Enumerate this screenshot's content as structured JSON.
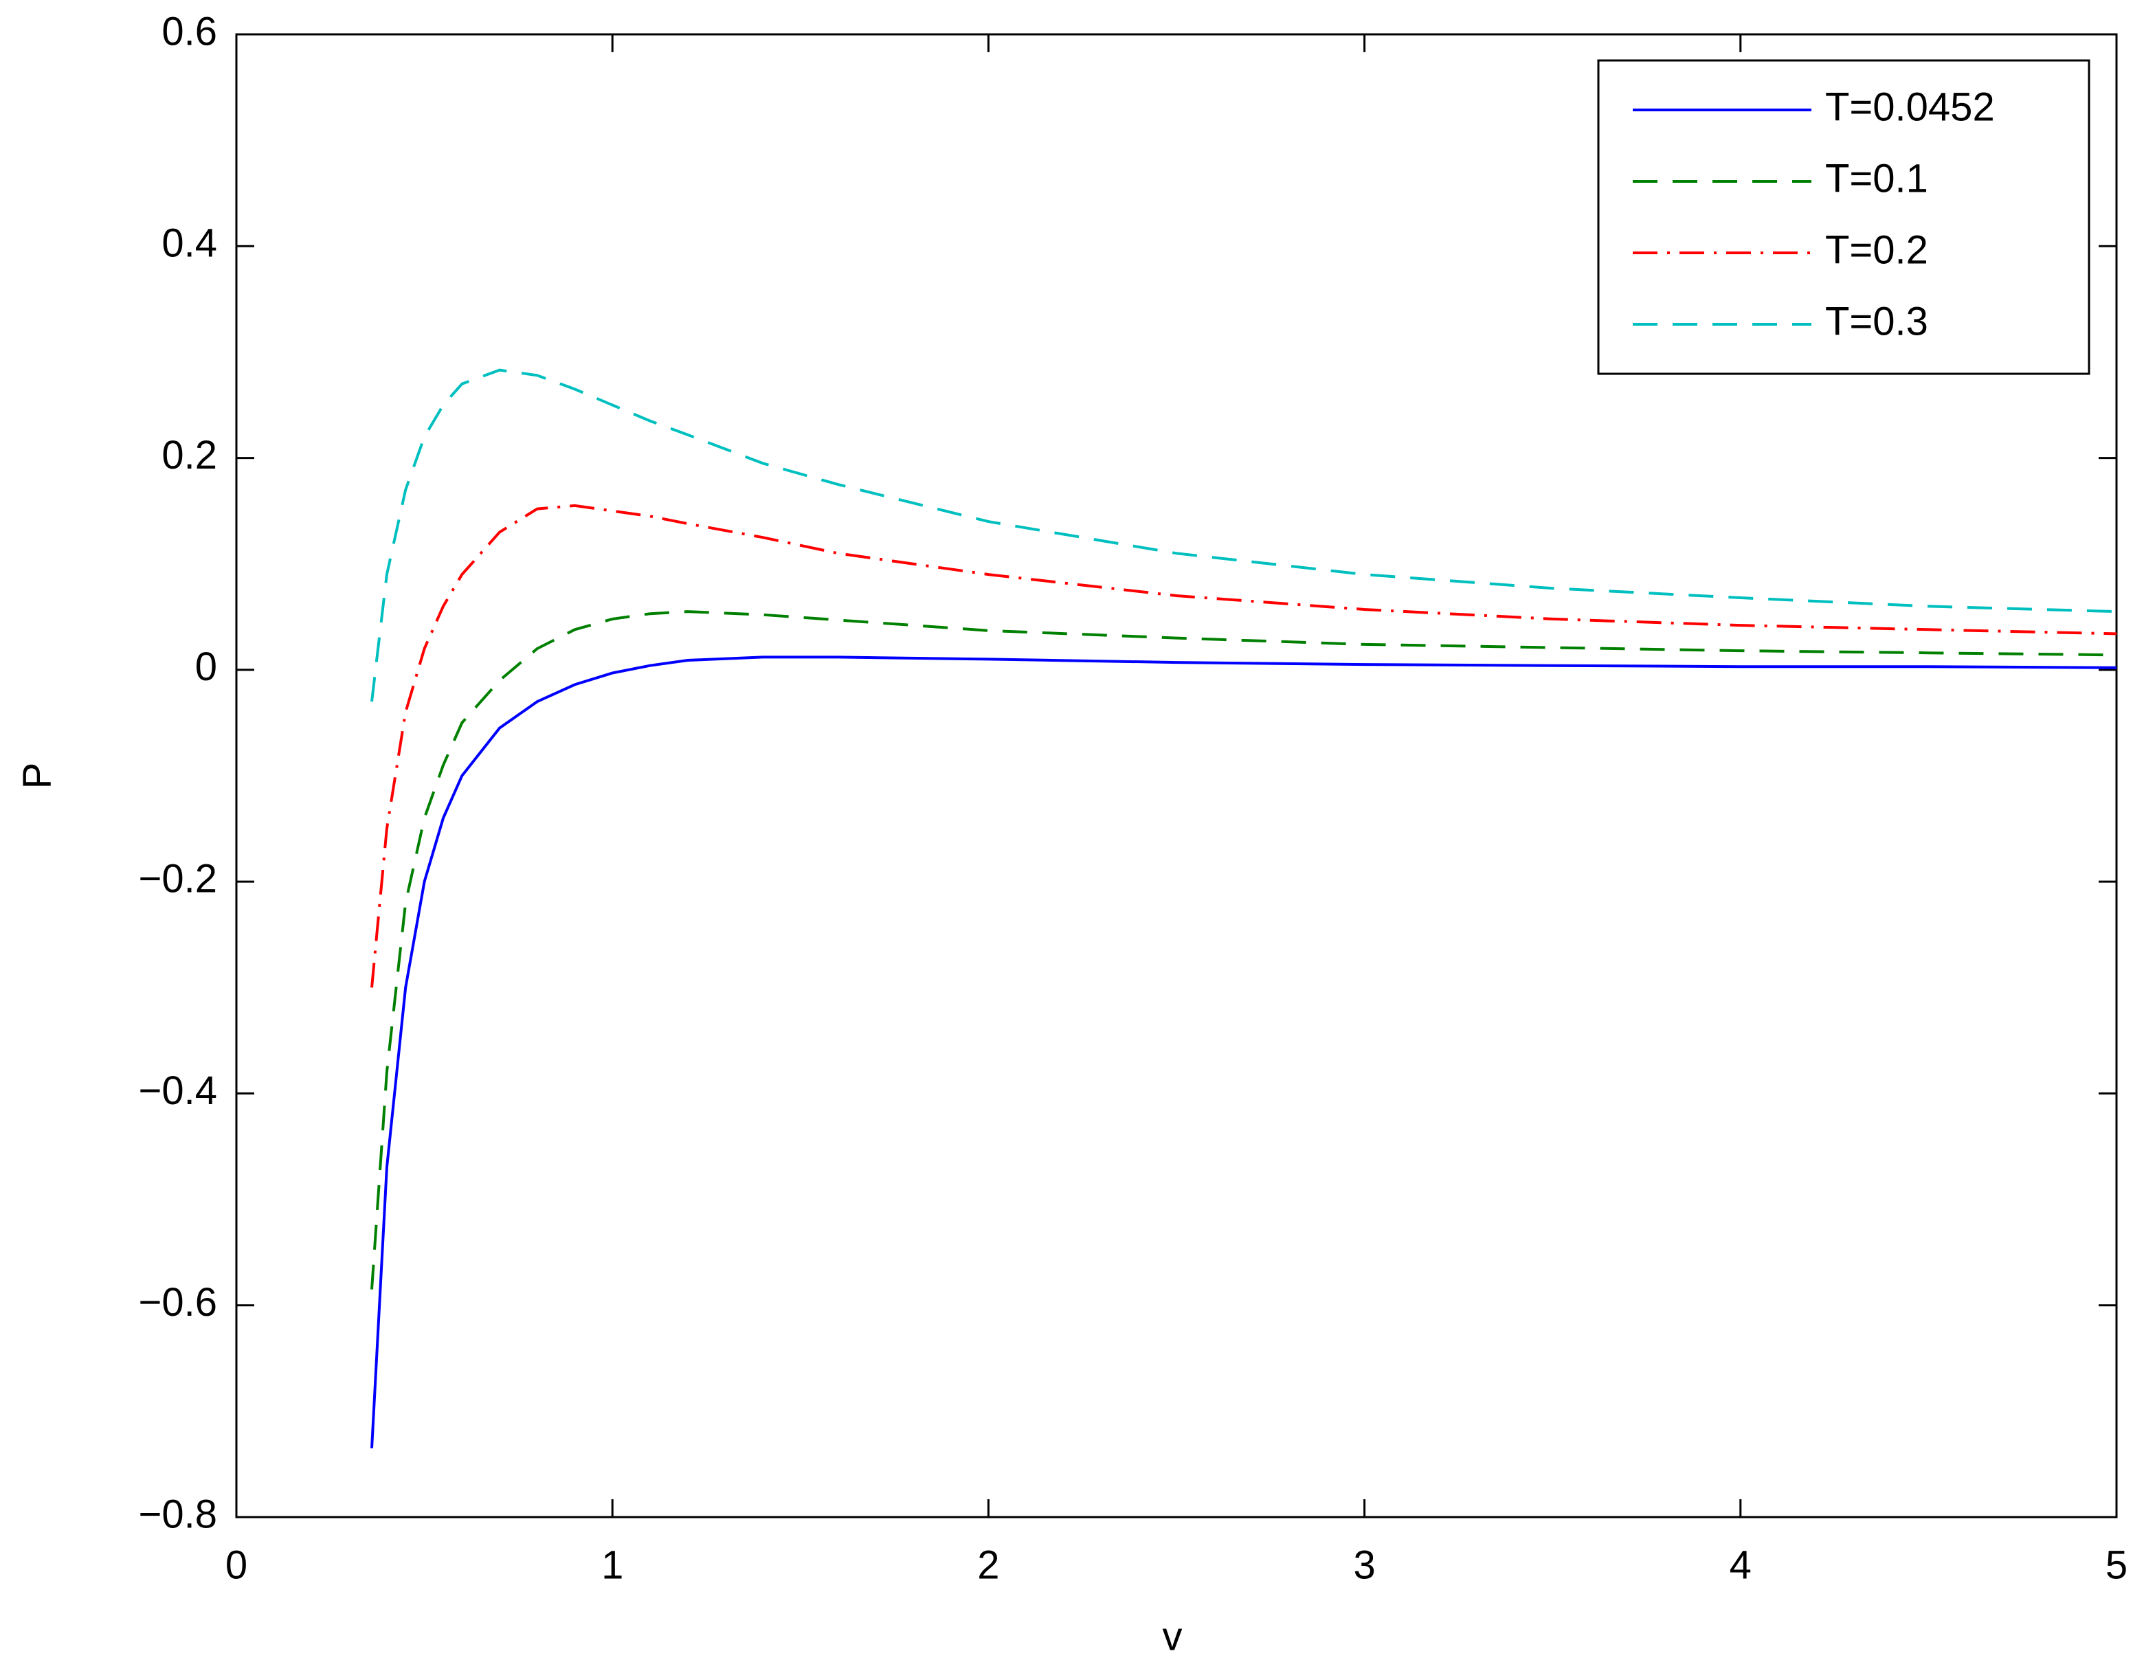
{
  "chart_data": {
    "type": "line",
    "x_label": "v",
    "y_label": "P",
    "xlim": [
      0,
      5
    ],
    "ylim": [
      -0.8,
      0.6
    ],
    "xticks": [
      0,
      1,
      2,
      3,
      4,
      5
    ],
    "yticks": [
      {
        "value": -0.8,
        "label": "−0.8"
      },
      {
        "value": -0.6,
        "label": "−0.6"
      },
      {
        "value": -0.4,
        "label": "−0.4"
      },
      {
        "value": -0.2,
        "label": "−0.2"
      },
      0,
      0.2,
      0.4,
      0.6
    ],
    "legend": "upper right",
    "x": [
      0.36,
      0.4,
      0.45,
      0.5,
      0.55,
      0.6,
      0.7,
      0.8,
      0.9,
      1.0,
      1.1,
      1.2,
      1.4,
      1.6,
      2,
      2.5,
      3,
      3.5,
      4,
      4.5,
      5
    ],
    "series": [
      {
        "name": "T=0.0452",
        "color": "#0000ff",
        "dash": "solid",
        "values": [
          -0.735,
          -0.47,
          -0.3,
          -0.2,
          -0.14,
          -0.1,
          -0.055,
          -0.03,
          -0.014,
          -0.003,
          0.004,
          0.009,
          0.012,
          0.012,
          0.01,
          0.007,
          0.005,
          0.004,
          0.003,
          0.003,
          0.002
        ]
      },
      {
        "name": "T=0.1",
        "color": "#008000",
        "dash": "dashed",
        "values": [
          -0.585,
          -0.38,
          -0.22,
          -0.14,
          -0.09,
          -0.05,
          -0.01,
          0.02,
          0.038,
          0.048,
          0.053,
          0.055,
          0.052,
          0.047,
          0.037,
          0.03,
          0.024,
          0.021,
          0.018,
          0.016,
          0.014
        ]
      },
      {
        "name": "T=0.2",
        "color": "#ff0000",
        "dash": "dashdot",
        "values": [
          -0.3,
          -0.15,
          -0.04,
          0.02,
          0.06,
          0.09,
          0.13,
          0.152,
          0.155,
          0.15,
          0.145,
          0.138,
          0.125,
          0.11,
          0.09,
          0.07,
          0.057,
          0.048,
          0.042,
          0.038,
          0.034
        ]
      },
      {
        "name": "T=0.3",
        "color": "#00bfbf",
        "dash": "dashed",
        "values": [
          -0.03,
          0.09,
          0.17,
          0.22,
          0.25,
          0.27,
          0.283,
          0.278,
          0.265,
          0.25,
          0.235,
          0.222,
          0.195,
          0.175,
          0.14,
          0.11,
          0.09,
          0.077,
          0.068,
          0.06,
          0.055
        ]
      }
    ]
  }
}
